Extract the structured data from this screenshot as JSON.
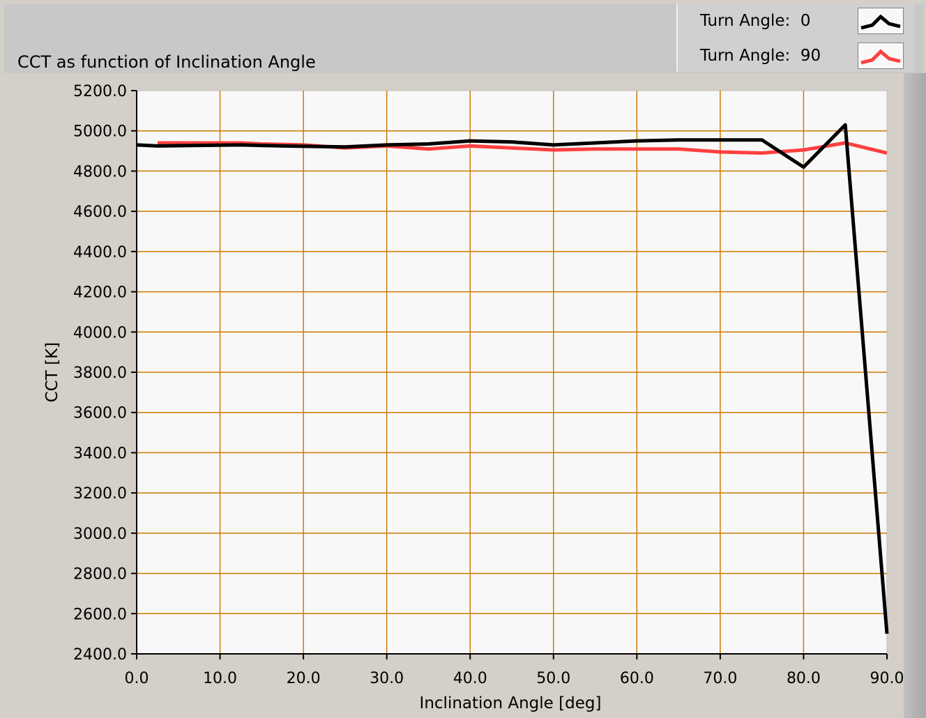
{
  "chart_data": {
    "type": "line",
    "title": "CCT as function of Inclination Angle",
    "xlabel": "Inclination Angle [deg]",
    "ylabel": "CCT [K]",
    "xlim": [
      0,
      90
    ],
    "ylim": [
      2400,
      5200
    ],
    "x_ticks": [
      "0.0",
      "10.0",
      "20.0",
      "30.0",
      "40.0",
      "50.0",
      "60.0",
      "70.0",
      "80.0",
      "90.0"
    ],
    "y_ticks": [
      "5200.0",
      "5000.0",
      "4800.0",
      "4600.0",
      "4400.0",
      "4200.0",
      "4000.0",
      "3800.0",
      "3600.0",
      "3400.0",
      "3200.0",
      "3000.0",
      "2800.0",
      "2600.0",
      "2400.0"
    ],
    "grid": true,
    "legend_position": "top-right",
    "series": [
      {
        "name": "Turn Angle:  0",
        "color": "#000000",
        "x": [
          0,
          2.5,
          12.5,
          17.5,
          25,
          30,
          35,
          40,
          45,
          50,
          55,
          60,
          65,
          70,
          75,
          80,
          85,
          90
        ],
        "y": [
          4930,
          4925,
          4930,
          4925,
          4920,
          4930,
          4935,
          4950,
          4945,
          4930,
          4940,
          4950,
          4955,
          4955,
          4955,
          4820,
          5030,
          2500
        ]
      },
      {
        "name": "Turn Angle:  90",
        "color": "#ff4040",
        "x": [
          2.5,
          12.5,
          15,
          20,
          25,
          30,
          35,
          40,
          45,
          50,
          55,
          60,
          65,
          70,
          75,
          80,
          85,
          90
        ],
        "y": [
          4940,
          4940,
          4935,
          4930,
          4915,
          4925,
          4910,
          4925,
          4915,
          4905,
          4910,
          4910,
          4910,
          4895,
          4890,
          4905,
          4940,
          4890
        ]
      }
    ]
  },
  "legend": {
    "items": [
      {
        "label": "Turn Angle:  0",
        "color": "#000000"
      },
      {
        "label": "Turn Angle:  90",
        "color": "#ff4040"
      }
    ]
  },
  "colors": {
    "plot_background": "#f8f8f8",
    "grid": "#d07800",
    "panel": "#d4d0c8"
  }
}
